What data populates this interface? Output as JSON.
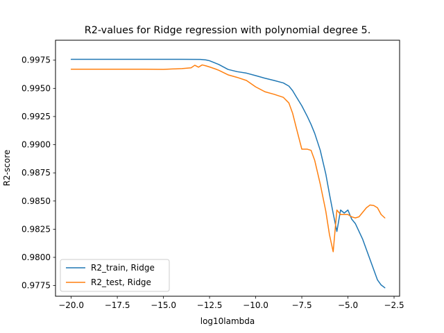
{
  "chart_data": {
    "type": "line",
    "title": "R2-values for Ridge regression with polynomial degree 5.",
    "xlabel": "log10lambda",
    "ylabel": "R2-score",
    "xlim": [
      -20.85,
      -2.2
    ],
    "ylim": [
      0.97655,
      0.99927
    ],
    "grid": false,
    "legend_position": "lower-left",
    "x_ticks": [
      -20.0,
      -17.5,
      -15.0,
      -12.5,
      -10.0,
      -7.5,
      -5.0,
      -2.5
    ],
    "x_tick_labels": [
      "−20.0",
      "−17.5",
      "−15.0",
      "−12.5",
      "−10.0",
      "−7.5",
      "−5.0",
      "−2.5"
    ],
    "y_ticks": [
      0.9775,
      0.98,
      0.9825,
      0.985,
      0.9875,
      0.99,
      0.9925,
      0.995,
      0.9975
    ],
    "y_tick_labels": [
      "0.9775",
      "0.9800",
      "0.9825",
      "0.9850",
      "0.9875",
      "0.9900",
      "0.9925",
      "0.9950",
      "0.9975"
    ],
    "series": [
      {
        "name": "R2_train, Ridge",
        "color": "#1f77b4",
        "x": [
          -20.0,
          -18.0,
          -16.0,
          -14.0,
          -13.0,
          -12.7,
          -12.5,
          -12.0,
          -11.5,
          -11.0,
          -10.5,
          -10.0,
          -9.5,
          -9.0,
          -8.5,
          -8.2,
          -8.0,
          -7.8,
          -7.5,
          -7.2,
          -7.0,
          -6.8,
          -6.5,
          -6.2,
          -6.0,
          -5.8,
          -5.6,
          -5.4,
          -5.2,
          -5.0,
          -4.8,
          -4.6,
          -4.4,
          -4.2,
          -4.0,
          -3.8,
          -3.6,
          -3.4,
          -3.2,
          -3.0
        ],
        "y": [
          0.99758,
          0.99758,
          0.99758,
          0.99758,
          0.99757,
          0.99752,
          0.99745,
          0.99712,
          0.99668,
          0.99648,
          0.99635,
          0.99613,
          0.9959,
          0.9957,
          0.99548,
          0.9952,
          0.9948,
          0.99425,
          0.99345,
          0.9925,
          0.9918,
          0.991,
          0.9895,
          0.9874,
          0.9856,
          0.9839,
          0.9823,
          0.9842,
          0.98393,
          0.9842,
          0.9834,
          0.983,
          0.9823,
          0.9816,
          0.9807,
          0.9798,
          0.9789,
          0.978,
          0.97755,
          0.9773
        ]
      },
      {
        "name": "R2_test, Ridge",
        "color": "#ff7f0e",
        "x": [
          -20.0,
          -18.0,
          -16.0,
          -15.0,
          -14.5,
          -14.0,
          -13.5,
          -13.3,
          -13.1,
          -12.9,
          -12.7,
          -12.5,
          -12.2,
          -12.0,
          -11.5,
          -11.0,
          -10.5,
          -10.0,
          -9.5,
          -9.0,
          -8.5,
          -8.2,
          -8.0,
          -7.8,
          -7.5,
          -7.2,
          -7.0,
          -6.8,
          -6.5,
          -6.2,
          -6.0,
          -5.8,
          -5.6,
          -5.4,
          -5.2,
          -5.0,
          -4.8,
          -4.6,
          -4.4,
          -4.2,
          -4.0,
          -3.8,
          -3.6,
          -3.4,
          -3.2,
          -3.0
        ],
        "y": [
          0.9967,
          0.9967,
          0.9967,
          0.99668,
          0.99672,
          0.99675,
          0.99682,
          0.99705,
          0.99688,
          0.99708,
          0.997,
          0.9969,
          0.99673,
          0.9966,
          0.9962,
          0.99597,
          0.9957,
          0.99513,
          0.9947,
          0.99447,
          0.9942,
          0.9937,
          0.9928,
          0.9915,
          0.9896,
          0.9896,
          0.9895,
          0.9886,
          0.9865,
          0.9841,
          0.982,
          0.9805,
          0.9842,
          0.9838,
          0.9838,
          0.9838,
          0.9836,
          0.9835,
          0.9836,
          0.984,
          0.9844,
          0.98465,
          0.9846,
          0.9844,
          0.9838,
          0.9835
        ]
      }
    ]
  }
}
